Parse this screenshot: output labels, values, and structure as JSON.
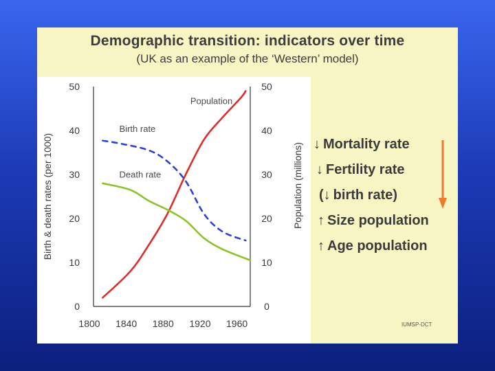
{
  "slide": {
    "title": "Demographic transition: indicators over time",
    "subtitle": "(UK as an example of the ‘Western’ model)",
    "credit": "IUMSP-DCT",
    "colors": {
      "background_top": "#3a66ee",
      "background_bottom": "#0c1f7e",
      "slide_bg": "#f8f5c4",
      "trend_arrow": "#f07a2a"
    }
  },
  "indicators": [
    {
      "arrow": "↓",
      "text": "Mortality rate",
      "direction": "down"
    },
    {
      "arrow": "↓",
      "text": "Fertility rate",
      "direction": "down"
    },
    {
      "arrow": "(↓",
      "text": "birth rate)",
      "direction": "down"
    },
    {
      "arrow": "↑",
      "text": "Size population",
      "direction": "up"
    },
    {
      "arrow": "↑",
      "text": "Age population",
      "direction": "up"
    }
  ],
  "chart_data": {
    "type": "line",
    "xlim": [
      1800,
      1970
    ],
    "ylim": [
      0,
      50
    ],
    "x_ticks": [
      1800,
      1840,
      1880,
      1920,
      1960
    ],
    "y_ticks": [
      0,
      10,
      20,
      30,
      40,
      50
    ],
    "ylabel_left": "Birth & death rates (per 1000)",
    "ylabel_right": "Population (millions)",
    "series": [
      {
        "name": "Population",
        "label": "Population",
        "color": "#e02b28",
        "style": "solid",
        "points": [
          [
            1810,
            2
          ],
          [
            1840,
            8
          ],
          [
            1860,
            14
          ],
          [
            1880,
            21
          ],
          [
            1900,
            30
          ],
          [
            1920,
            38
          ],
          [
            1940,
            43
          ],
          [
            1960,
            47.5
          ],
          [
            1965,
            49
          ]
        ]
      },
      {
        "name": "Birth rate",
        "label": "Birth rate",
        "color": "#2a3fe0",
        "style": "dashed",
        "points": [
          [
            1810,
            37.7
          ],
          [
            1830,
            37
          ],
          [
            1860,
            35.5
          ],
          [
            1880,
            33
          ],
          [
            1900,
            28.5
          ],
          [
            1920,
            21
          ],
          [
            1940,
            17
          ],
          [
            1965,
            15
          ]
        ]
      },
      {
        "name": "Death rate",
        "label": "Death rate",
        "color": "#8ac426",
        "style": "solid",
        "points": [
          [
            1810,
            28
          ],
          [
            1840,
            26.5
          ],
          [
            1860,
            24
          ],
          [
            1880,
            22
          ],
          [
            1900,
            19.5
          ],
          [
            1920,
            15.5
          ],
          [
            1940,
            13
          ],
          [
            1970,
            10.5
          ]
        ]
      }
    ]
  }
}
